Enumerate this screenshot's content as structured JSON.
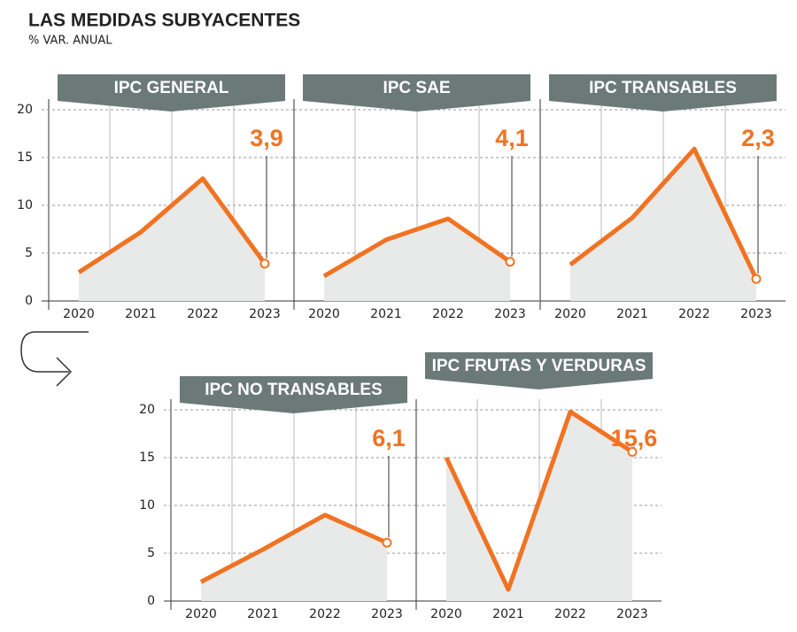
{
  "header": {
    "title": "LAS MEDIDAS SUBYACENTES",
    "subtitle": "% VAR. ANUAL"
  },
  "chart_data": [
    {
      "type": "line",
      "title": "IPC GENERAL",
      "categories": [
        "2020",
        "2021",
        "2022",
        "2023"
      ],
      "values": [
        3.0,
        7.2,
        12.8,
        3.9
      ],
      "value_labels": [
        null,
        null,
        null,
        "3,9"
      ],
      "color": "#f07322",
      "ylim": [
        0,
        20
      ],
      "yticks": [
        0,
        5,
        10,
        15,
        20
      ],
      "grid": true
    },
    {
      "type": "line",
      "title": "IPC SAE",
      "categories": [
        "2020",
        "2021",
        "2022",
        "2023"
      ],
      "values": [
        2.6,
        6.4,
        8.6,
        4.1
      ],
      "value_labels": [
        null,
        null,
        null,
        "4,1"
      ],
      "color": "#f07322",
      "ylim": [
        0,
        20
      ],
      "yticks": [
        0,
        5,
        10,
        15,
        20
      ],
      "grid": true
    },
    {
      "type": "line",
      "title": "IPC TRANSABLES",
      "categories": [
        "2020",
        "2021",
        "2022",
        "2023"
      ],
      "values": [
        3.8,
        8.7,
        15.9,
        2.3
      ],
      "value_labels": [
        null,
        null,
        null,
        "2,3"
      ],
      "color": "#f07322",
      "ylim": [
        0,
        20
      ],
      "yticks": [
        0,
        5,
        10,
        15,
        20
      ],
      "grid": true
    },
    {
      "type": "line",
      "title": "IPC NO TRANSABLES",
      "categories": [
        "2020",
        "2021",
        "2022",
        "2023"
      ],
      "values": [
        2.0,
        5.4,
        9.0,
        6.1
      ],
      "value_labels": [
        null,
        null,
        null,
        "6,1"
      ],
      "color": "#f07322",
      "ylim": [
        0,
        20
      ],
      "yticks": [
        0,
        5,
        10,
        15,
        20
      ],
      "grid": true
    },
    {
      "type": "line",
      "title": "IPC FRUTAS Y VERDURAS",
      "categories": [
        "2020",
        "2021",
        "2022",
        "2023"
      ],
      "values": [
        15.0,
        1.2,
        19.8,
        15.6
      ],
      "value_labels": [
        null,
        null,
        null,
        "15,6"
      ],
      "color": "#f07322",
      "ylim": [
        0,
        20
      ],
      "yticks": [
        0,
        5,
        10,
        15,
        20
      ],
      "grid": true
    }
  ]
}
